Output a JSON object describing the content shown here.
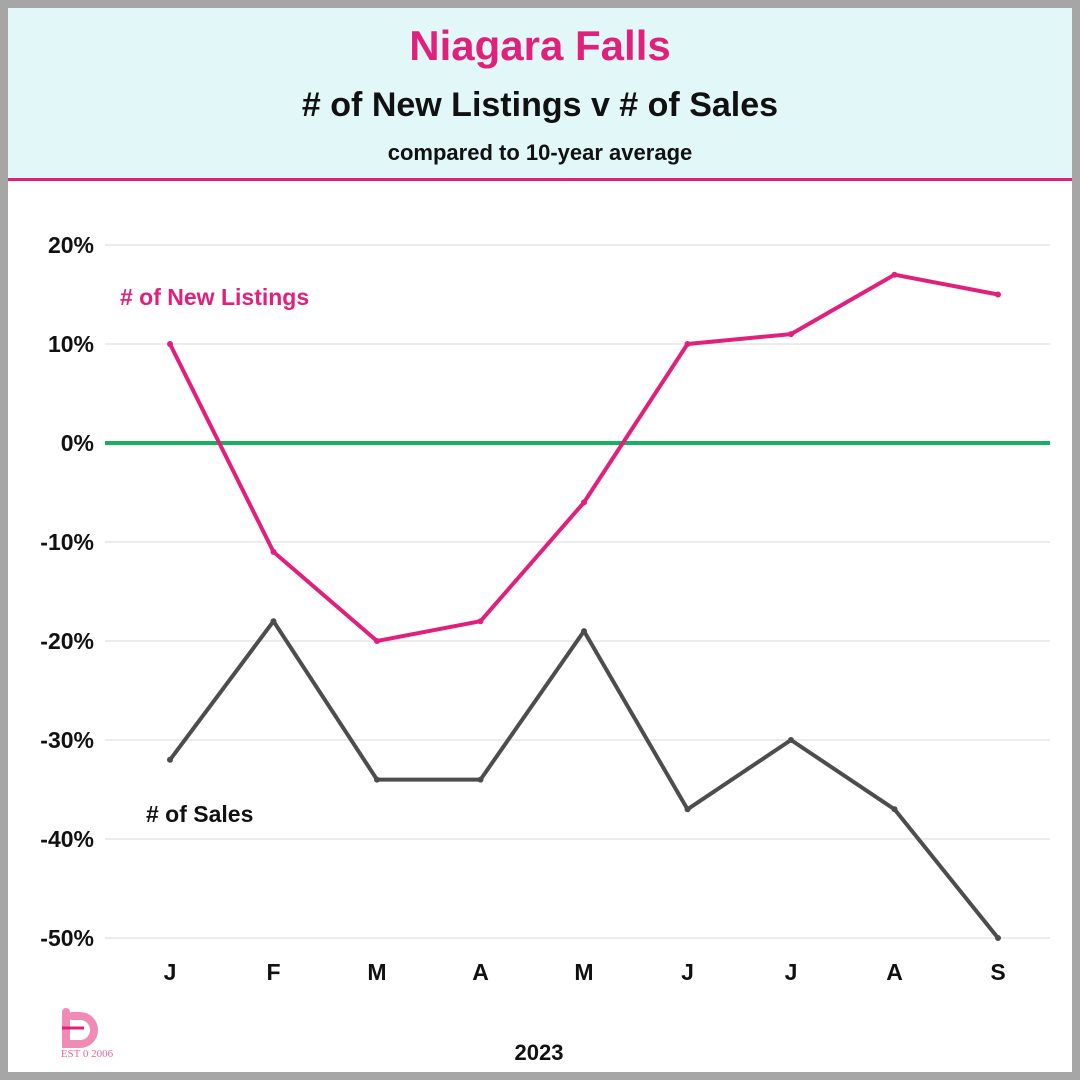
{
  "header": {
    "title": "Niagara Falls",
    "subtitle": "# of New Listings v # of Sales",
    "note": "compared to 10-year average"
  },
  "logo": {
    "est_text": "EST 0 2006",
    "icon": "b-logo-icon"
  },
  "colors": {
    "accent": "#e0207a",
    "header_bg": "#e2f7f7",
    "listings": "#e0207a",
    "sales": "#4d4d4d",
    "zero_line": "#17b060",
    "grid": "#d9d9d9",
    "border": "#a6a6a6"
  },
  "chart_data": {
    "type": "line",
    "categories": [
      "J",
      "F",
      "M",
      "A",
      "M",
      "J",
      "J",
      "A",
      "S"
    ],
    "xlabel": "2023",
    "ylabel": "",
    "ylim": [
      -50,
      20
    ],
    "yticks": [
      20,
      10,
      0,
      -10,
      -20,
      -30,
      -40,
      -50
    ],
    "ytick_labels": [
      "20%",
      "10%",
      "0%",
      "-10%",
      "-20%",
      "-30%",
      "-40%",
      "-50%"
    ],
    "grid": true,
    "reference_line": 0,
    "series": [
      {
        "name": "# of New Listings",
        "values": [
          10,
          -11,
          -20,
          -18,
          -6,
          10,
          11,
          17,
          15
        ]
      },
      {
        "name": "# of Sales",
        "values": [
          -32,
          -18,
          -34,
          -34,
          -19,
          -37,
          -30,
          -37,
          -50
        ]
      }
    ]
  }
}
